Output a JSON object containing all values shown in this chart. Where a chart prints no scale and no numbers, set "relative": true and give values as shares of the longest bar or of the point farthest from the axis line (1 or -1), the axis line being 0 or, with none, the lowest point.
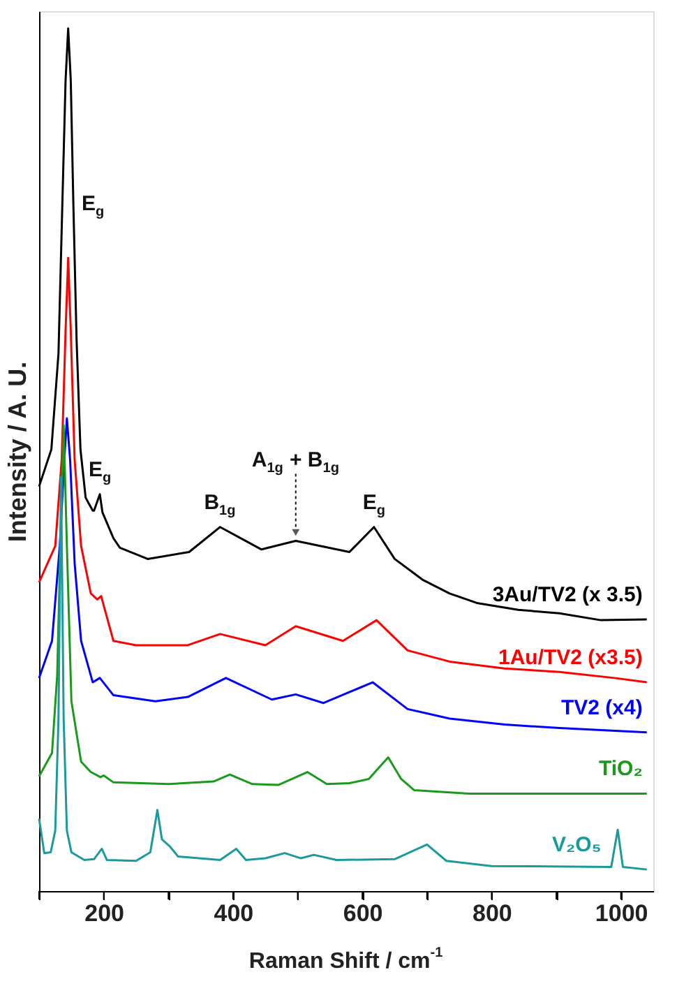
{
  "chart_data": {
    "type": "line",
    "relative": true,
    "xlabel": "Raman Shift / cm$^{-1}$",
    "ylabel": "Intensity / A. U.",
    "xlim": [
      100,
      1050
    ],
    "xticks": [
      {
        "value": 100,
        "label": null
      },
      200,
      {
        "value": 300,
        "label": null
      },
      400,
      {
        "value": 500,
        "label": null
      },
      600,
      {
        "value": 700,
        "label": null
      },
      800,
      {
        "value": 900,
        "label": null
      },
      1000
    ],
    "grid": false,
    "marker": "none",
    "line_style": "solid",
    "annotations": [
      {
        "text": "E$_{g}$",
        "x": 153,
        "y": 0.797
      },
      {
        "text": "E$_{g}$",
        "x": 194,
        "y": 0.46
      },
      {
        "text": "B$_{1g}$",
        "x": 380,
        "y": 0.422
      },
      {
        "text": "A$_{1g}$ + B$_{1g}$",
        "x": 497,
        "y": 0.406
      },
      {
        "text": "E$_{g}$",
        "x": 618,
        "y": 0.422
      }
    ],
    "series": [
      {
        "name": "3Au/TV2 (x 3.5)",
        "color": "#000000",
        "x": [
          100,
          119,
          130,
          136,
          141,
          145,
          149,
          153,
          158,
          164,
          172,
          183,
          185,
          194,
          198,
          215,
          225,
          268,
          332,
          380,
          444,
          497,
          580,
          618,
          650,
          693,
          735,
          777,
          841,
          905,
          969,
          1040
        ],
        "values": [
          0.469,
          0.512,
          0.623,
          0.797,
          0.94,
          1.0,
          0.94,
          0.797,
          0.639,
          0.512,
          0.456,
          0.441,
          0.441,
          0.46,
          0.439,
          0.409,
          0.398,
          0.385,
          0.393,
          0.422,
          0.396,
          0.406,
          0.393,
          0.422,
          0.385,
          0.361,
          0.345,
          0.334,
          0.326,
          0.322,
          0.314,
          0.315
        ]
      },
      {
        "name": "1Au/TV2 (x3.5)",
        "color": "#ff0000",
        "x": [
          100,
          125,
          135,
          141,
          145,
          149,
          155,
          165,
          180,
          190,
          196,
          215,
          250,
          330,
          380,
          450,
          497,
          570,
          622,
          670,
          735,
          820,
          905,
          990,
          1040
        ],
        "values": [
          0.358,
          0.4,
          0.5,
          0.65,
          0.734,
          0.65,
          0.5,
          0.4,
          0.345,
          0.338,
          0.342,
          0.29,
          0.285,
          0.285,
          0.298,
          0.285,
          0.307,
          0.29,
          0.314,
          0.279,
          0.266,
          0.258,
          0.254,
          0.247,
          0.242
        ]
      },
      {
        "name": "TV2 (x4)",
        "color": "#0000ff",
        "x": [
          100,
          120,
          132,
          139,
          143,
          148,
          155,
          165,
          183,
          194,
          215,
          280,
          330,
          389,
          460,
          497,
          540,
          616,
          670,
          735,
          820,
          905,
          1040
        ],
        "values": [
          0.247,
          0.29,
          0.4,
          0.5,
          0.548,
          0.5,
          0.38,
          0.29,
          0.242,
          0.247,
          0.227,
          0.22,
          0.225,
          0.247,
          0.222,
          0.228,
          0.218,
          0.242,
          0.211,
          0.2,
          0.193,
          0.189,
          0.184
        ]
      },
      {
        "name": "TiO₂",
        "color": "#1a9a1a",
        "x": [
          100,
          120,
          128,
          133,
          138,
          143,
          150,
          165,
          180,
          195,
          200,
          215,
          300,
          370,
          395,
          430,
          470,
          515,
          545,
          580,
          610,
          640,
          660,
          680,
          765,
          1040
        ],
        "values": [
          0.133,
          0.16,
          0.25,
          0.4,
          0.54,
          0.4,
          0.22,
          0.15,
          0.138,
          0.132,
          0.134,
          0.126,
          0.124,
          0.127,
          0.135,
          0.124,
          0.123,
          0.138,
          0.124,
          0.125,
          0.13,
          0.155,
          0.13,
          0.117,
          0.113,
          0.113
        ]
      },
      {
        "name": "V₂O₅",
        "color": "#1a9a9a",
        "x": [
          100,
          108,
          118,
          125,
          130,
          134,
          138,
          143,
          150,
          170,
          185,
          197,
          205,
          250,
          272,
          283,
          290,
          302,
          315,
          380,
          405,
          420,
          450,
          480,
          505,
          525,
          560,
          650,
          700,
          730,
          800,
          985,
          995,
          1003,
          1040
        ],
        "values": [
          0.084,
          0.044,
          0.045,
          0.07,
          0.2,
          0.48,
          0.2,
          0.07,
          0.045,
          0.036,
          0.037,
          0.049,
          0.036,
          0.035,
          0.045,
          0.094,
          0.06,
          0.052,
          0.04,
          0.036,
          0.049,
          0.036,
          0.038,
          0.044,
          0.038,
          0.042,
          0.036,
          0.037,
          0.054,
          0.035,
          0.029,
          0.028,
          0.071,
          0.028,
          0.025
        ]
      }
    ]
  }
}
